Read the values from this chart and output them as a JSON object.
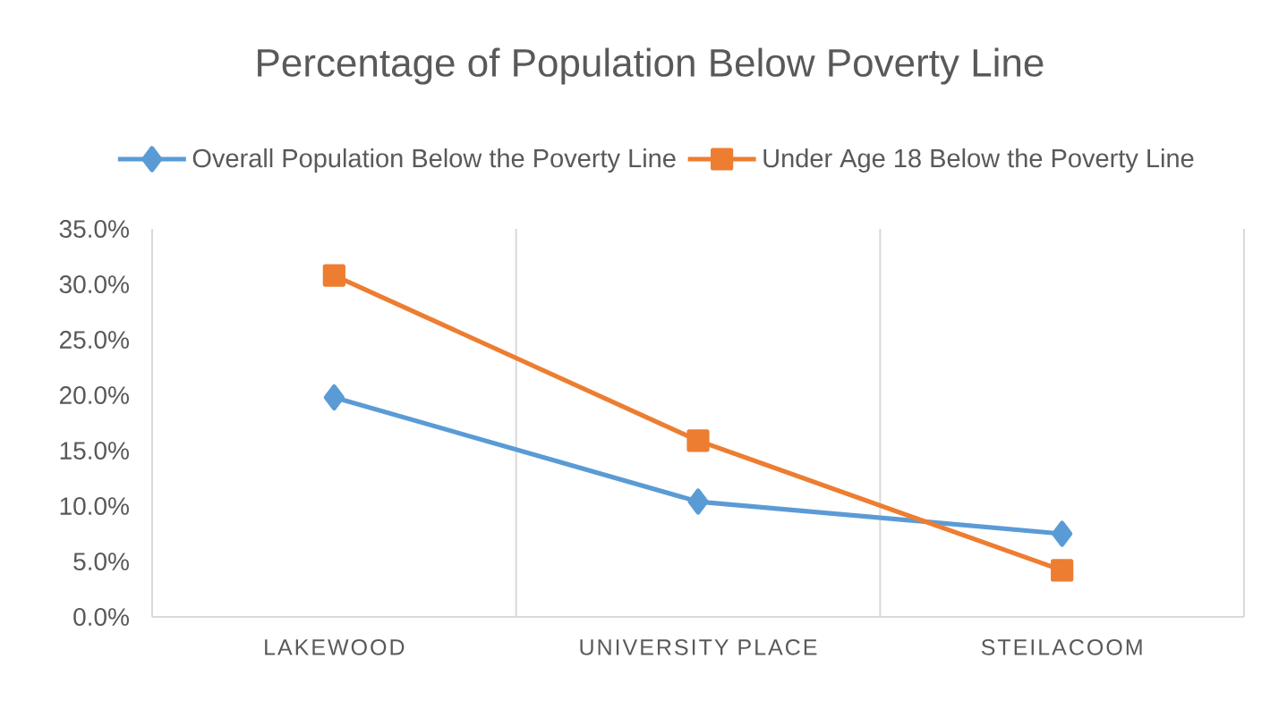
{
  "chart_data": {
    "type": "line",
    "title": "Percentage of Population Below Poverty Line",
    "categories": [
      "LAKEWOOD",
      "UNIVERSITY PLACE",
      "STEILACOOM"
    ],
    "series": [
      {
        "name": "Overall Population Below the Poverty Line",
        "color": "#5b9bd5",
        "marker": "diamond",
        "values": [
          19.8,
          10.4,
          7.5
        ]
      },
      {
        "name": "Under Age 18 Below the Poverty Line",
        "color": "#ed7d31",
        "marker": "square",
        "values": [
          30.8,
          15.9,
          4.2
        ]
      }
    ],
    "ylim": [
      0,
      35
    ],
    "yticks": [
      {
        "value": 0,
        "label": "0.0%"
      },
      {
        "value": 5,
        "label": "5.0%"
      },
      {
        "value": 10,
        "label": "10.0%"
      },
      {
        "value": 15,
        "label": "15.0%"
      },
      {
        "value": 20,
        "label": "20.0%"
      },
      {
        "value": 25,
        "label": "25.0%"
      },
      {
        "value": 30,
        "label": "30.0%"
      },
      {
        "value": 35,
        "label": "35.0%"
      }
    ],
    "grid": "x",
    "legend": "top"
  }
}
